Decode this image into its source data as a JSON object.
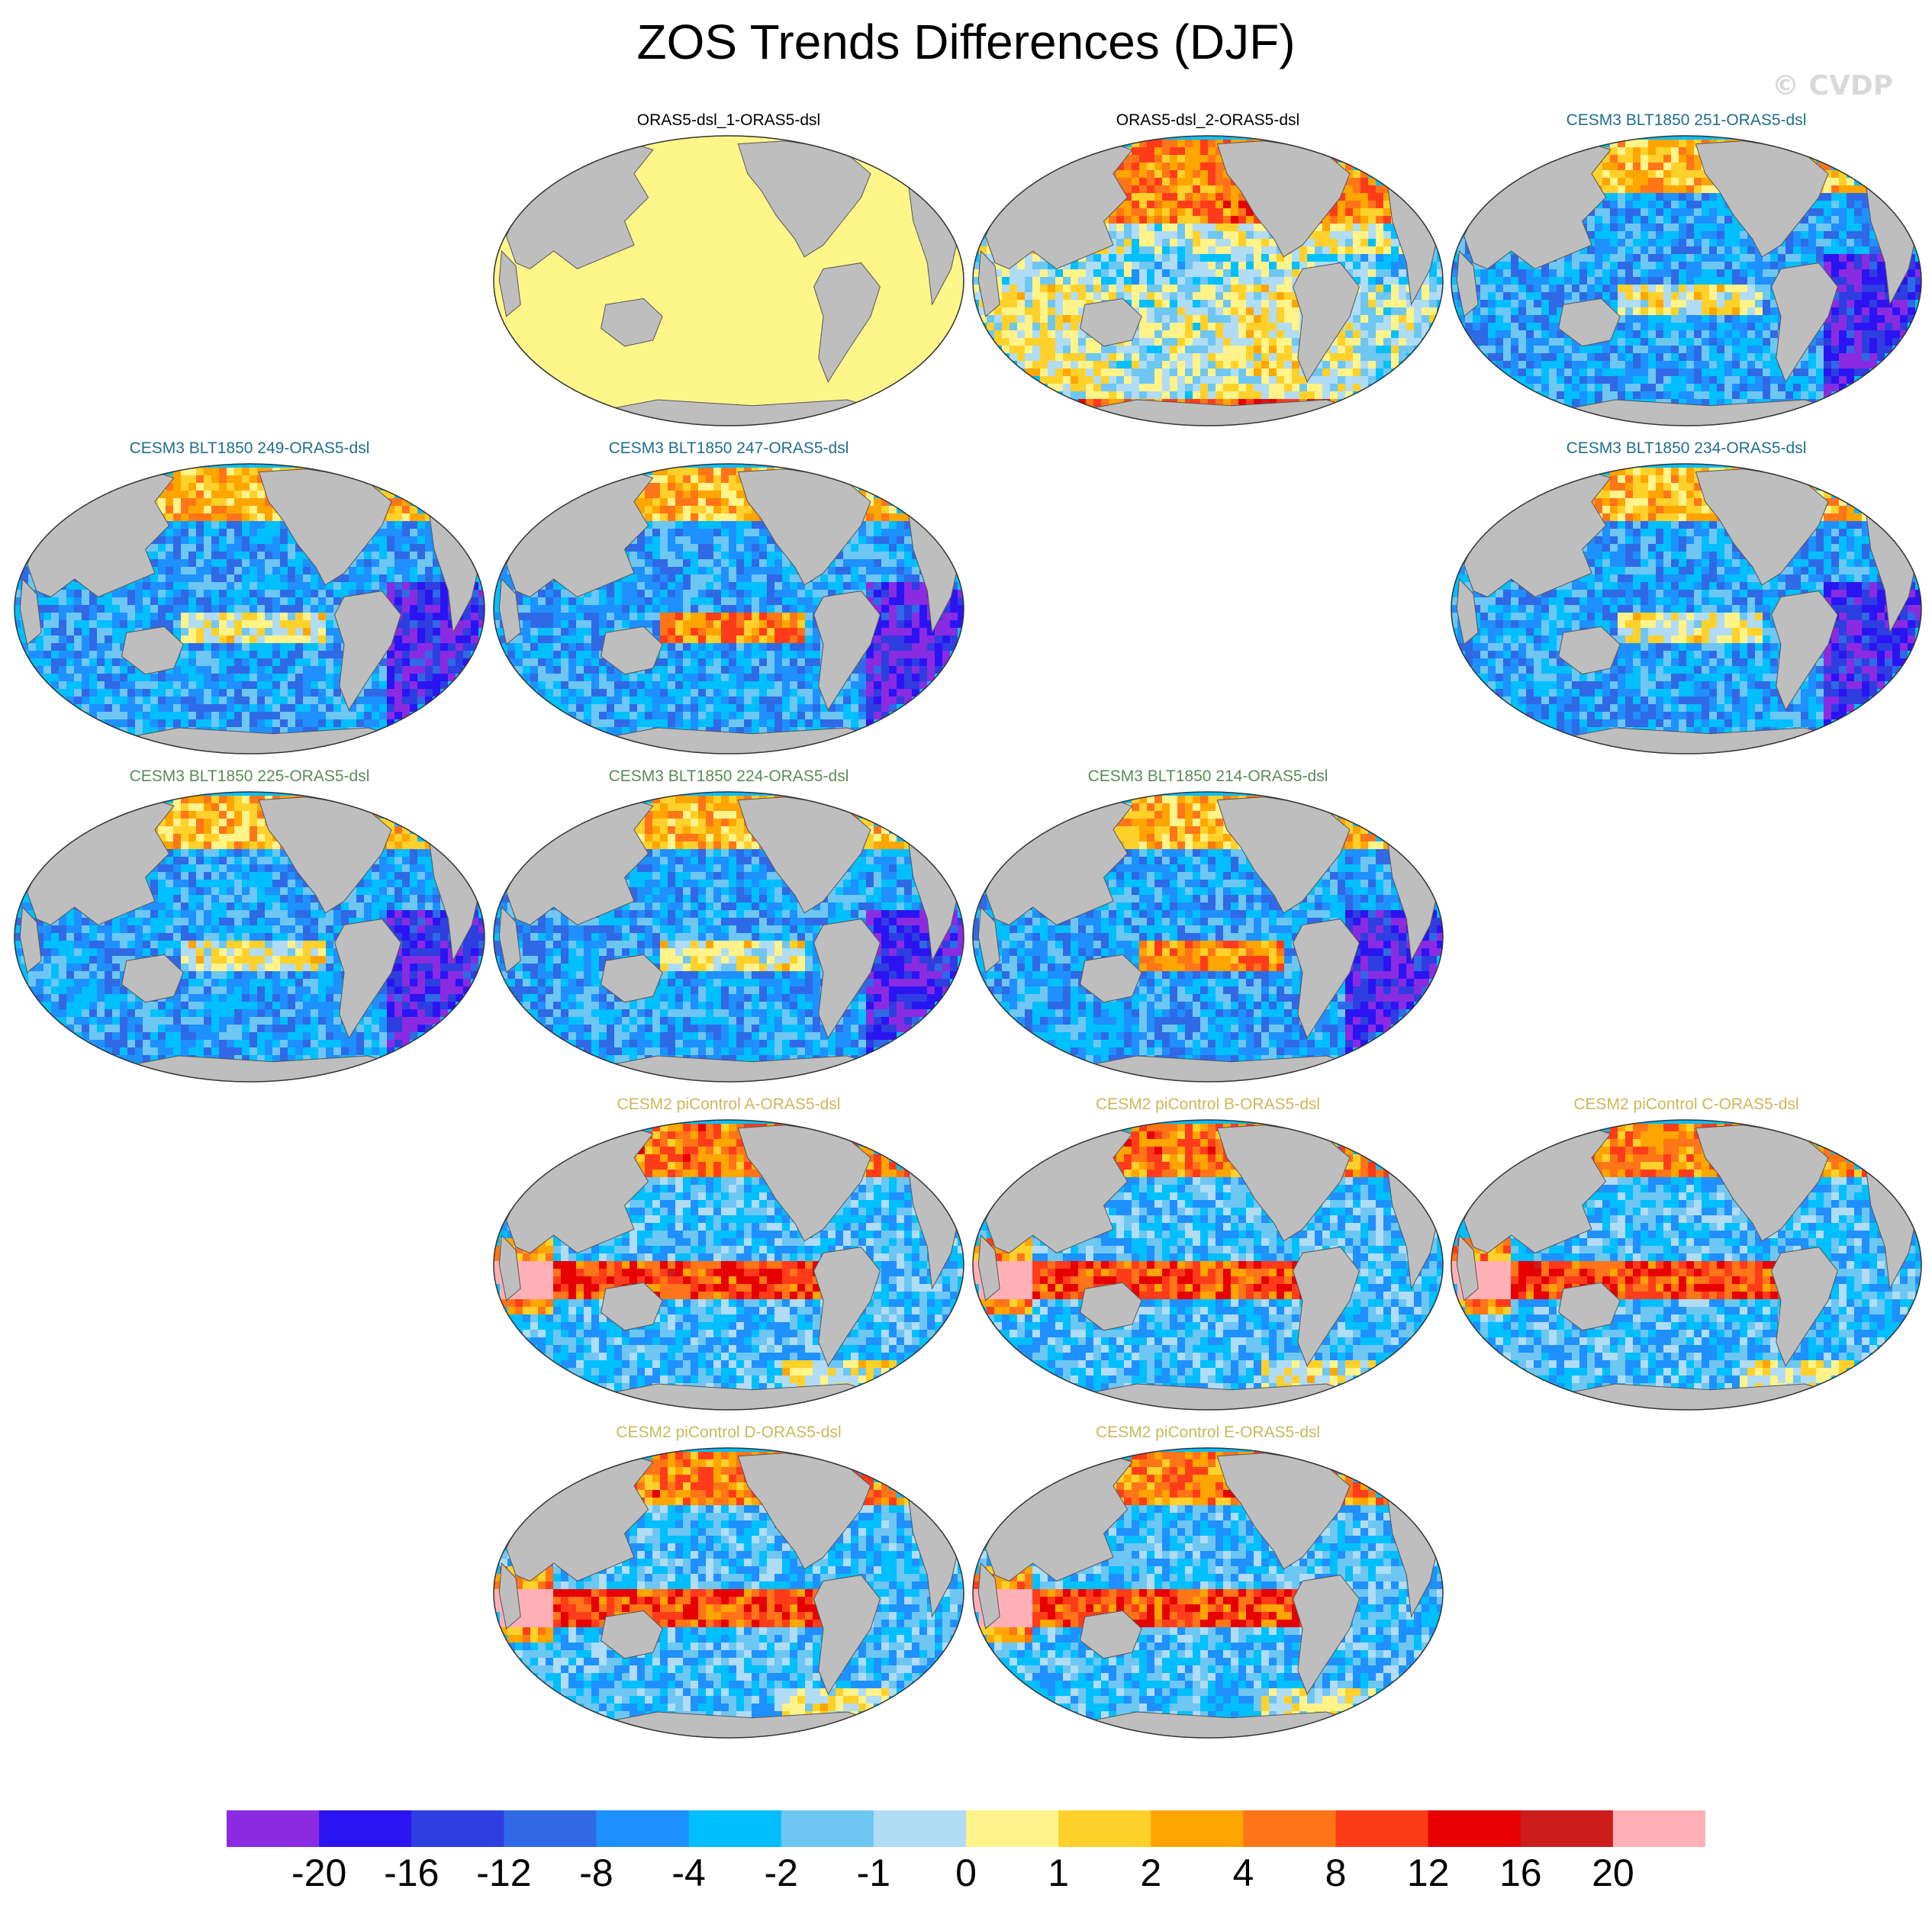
{
  "title": "ZOS Trends Differences (DJF)",
  "watermark": "© CVDP",
  "panels": [
    {
      "label": "ORAS5-dsl_1-ORAS5-dsl",
      "row": 0,
      "col": 1,
      "label_color": "#000000",
      "mode": "uniform",
      "seed": 1
    },
    {
      "label": "ORAS5-dsl_2-ORAS5-dsl",
      "row": 0,
      "col": 2,
      "label_color": "#000000",
      "mode": "oras",
      "seed": 2
    },
    {
      "label": "CESM3 BLT1850 251-ORAS5-dsl",
      "row": 0,
      "col": 3,
      "label_color": "#1f6e8c",
      "mode": "cesm3",
      "seed": 3
    },
    {
      "label": "CESM3 BLT1850 249-ORAS5-dsl",
      "row": 1,
      "col": 0,
      "label_color": "#1f6e8c",
      "mode": "cesm3",
      "seed": 4
    },
    {
      "label": "CESM3 BLT1850 247-ORAS5-dsl",
      "row": 1,
      "col": 1,
      "label_color": "#1f6e8c",
      "mode": "cesm3b",
      "seed": 5
    },
    {
      "label": "CESM3 BLT1850 234-ORAS5-dsl",
      "row": 1,
      "col": 3,
      "label_color": "#1f6e8c",
      "mode": "cesm3",
      "seed": 6
    },
    {
      "label": "CESM3 BLT1850 225-ORAS5-dsl",
      "row": 2,
      "col": 0,
      "label_color": "#5a8a5a",
      "mode": "cesm3",
      "seed": 7
    },
    {
      "label": "CESM3 BLT1850 224-ORAS5-dsl",
      "row": 2,
      "col": 1,
      "label_color": "#5a8a5a",
      "mode": "cesm3",
      "seed": 8
    },
    {
      "label": "CESM3 BLT1850 214-ORAS5-dsl",
      "row": 2,
      "col": 2,
      "label_color": "#5a8a5a",
      "mode": "cesm3b",
      "seed": 9
    },
    {
      "label": "CESM2 piControl A-ORAS5-dsl",
      "row": 3,
      "col": 1,
      "label_color": "#c9b95a",
      "mode": "cesm2",
      "seed": 10
    },
    {
      "label": "CESM2 piControl B-ORAS5-dsl",
      "row": 3,
      "col": 2,
      "label_color": "#c9b95a",
      "mode": "cesm2",
      "seed": 11
    },
    {
      "label": "CESM2 piControl C-ORAS5-dsl",
      "row": 3,
      "col": 3,
      "label_color": "#c9b95a",
      "mode": "cesm2",
      "seed": 12
    },
    {
      "label": "CESM2 piControl D-ORAS5-dsl",
      "row": 4,
      "col": 1,
      "label_color": "#c9b95a",
      "mode": "cesm2",
      "seed": 13
    },
    {
      "label": "CESM2 piControl E-ORAS5-dsl",
      "row": 4,
      "col": 2,
      "label_color": "#c9b95a",
      "mode": "cesm2",
      "seed": 14
    }
  ],
  "colorbar": {
    "colors": [
      "#8a2be2",
      "#2b14f2",
      "#2e3ee0",
      "#2f69e6",
      "#1e90ff",
      "#00bfff",
      "#6ec6f2",
      "#b0dcf5",
      "#fff38a",
      "#ffd12a",
      "#ffa500",
      "#ff7518",
      "#ff3c1a",
      "#e60000",
      "#cd1c1c",
      "#ffb0b7"
    ],
    "labels": [
      "-20",
      "-16",
      "-12",
      "-8",
      "-4",
      "-2",
      "-1",
      "0",
      "1",
      "2",
      "4",
      "8",
      "12",
      "16",
      "20"
    ]
  },
  "colors": {
    "land": "#bebebe",
    "uniform_ocean": "#fff68a"
  }
}
